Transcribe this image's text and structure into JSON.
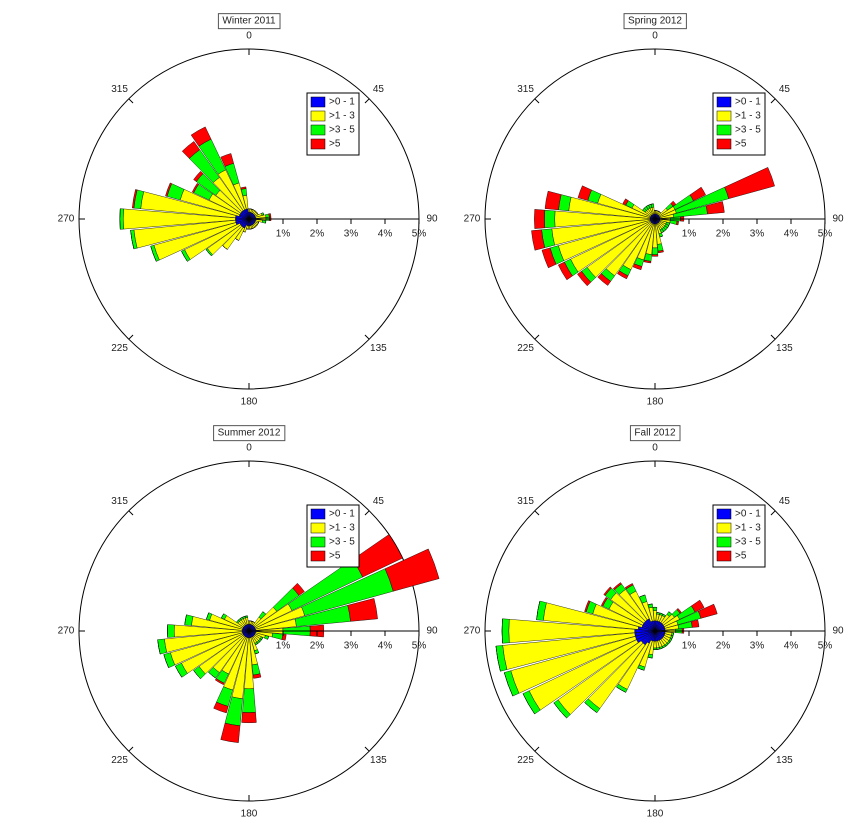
{
  "chart_data": [
    {
      "type": "rose",
      "title": "Winter 2011",
      "x": [
        0,
        10,
        20,
        30,
        40,
        50,
        60,
        70,
        80,
        90,
        100,
        110,
        120,
        130,
        140,
        150,
        160,
        170,
        180,
        190,
        200,
        210,
        220,
        230,
        240,
        250,
        260,
        270,
        280,
        290,
        300,
        310,
        320,
        330,
        340,
        350
      ],
      "xticks": [
        0,
        45,
        90,
        135,
        180,
        225,
        270,
        315
      ],
      "ylim": [
        0,
        5
      ],
      "yticks": [
        {
          "value": 1,
          "label": "1%"
        },
        {
          "value": 2,
          "label": "2%"
        },
        {
          "value": 3,
          "label": "3%"
        },
        {
          "value": 4,
          "label": "4%"
        },
        {
          "value": 5,
          "label": "5%"
        }
      ],
      "series": [
        {
          "name": ">0 - 1",
          "color": "#0000ff",
          "values": [
            0.2,
            0.2,
            0.2,
            0.2,
            0.2,
            0.2,
            0.2,
            0.2,
            0.2,
            0.2,
            0.2,
            0.2,
            0.2,
            0.2,
            0.2,
            0.2,
            0.2,
            0.2,
            0.2,
            0.2,
            0.2,
            0.3,
            0.3,
            0.3,
            0.3,
            0.4,
            0.4,
            0.4,
            0.4,
            0.3,
            0.3,
            0.3,
            0.3,
            0.3,
            0.3,
            0.3
          ]
        },
        {
          "name": ">1 - 3",
          "color": "#ffff00",
          "values": [
            0.1,
            0.1,
            0.1,
            0.1,
            0.1,
            0.1,
            0.1,
            0.2,
            0.3,
            0.3,
            0.2,
            0.1,
            0.1,
            0.1,
            0.1,
            0.1,
            0.1,
            0.1,
            0.1,
            0.1,
            0.2,
            0.4,
            0.8,
            1.2,
            1.8,
            2.5,
            3.0,
            3.3,
            2.8,
            1.8,
            1.0,
            0.9,
            1.2,
            1.3,
            0.8,
            0.4
          ]
        },
        {
          "name": ">3 - 5",
          "color": "#00ff00",
          "values": [
            0,
            0,
            0,
            0,
            0,
            0,
            0,
            0.05,
            0.1,
            0.1,
            0.1,
            0,
            0,
            0,
            0,
            0,
            0,
            0,
            0,
            0,
            0,
            0,
            0,
            0.05,
            0.1,
            0.1,
            0.1,
            0.1,
            0.2,
            0.4,
            0.5,
            0.7,
            1.0,
            1.0,
            0.6,
            0.2
          ]
        },
        {
          "name": ">5",
          "color": "#ff0000",
          "values": [
            0,
            0,
            0,
            0,
            0,
            0,
            0,
            0,
            0.05,
            0.05,
            0,
            0,
            0,
            0,
            0,
            0,
            0,
            0,
            0,
            0,
            0,
            0,
            0,
            0,
            0,
            0,
            0,
            0,
            0.05,
            0.05,
            0.05,
            0.1,
            0.3,
            0.4,
            0.3,
            0.05
          ]
        }
      ]
    },
    {
      "type": "rose",
      "title": "Spring 2012",
      "x": [
        0,
        10,
        20,
        30,
        40,
        50,
        60,
        70,
        80,
        90,
        100,
        110,
        120,
        130,
        140,
        150,
        160,
        170,
        180,
        190,
        200,
        210,
        220,
        230,
        240,
        250,
        260,
        270,
        280,
        290,
        300,
        310,
        320,
        330,
        340,
        350
      ],
      "xticks": [
        0,
        45,
        90,
        135,
        180,
        225,
        270,
        315
      ],
      "ylim": [
        0,
        5
      ],
      "yticks": [
        {
          "value": 1,
          "label": "1%"
        },
        {
          "value": 2,
          "label": "2%"
        },
        {
          "value": 3,
          "label": "3%"
        },
        {
          "value": 4,
          "label": "4%"
        },
        {
          "value": 5,
          "label": "5%"
        }
      ],
      "series": [
        {
          "name": ">0 - 1",
          "color": "#0000ff",
          "values": [
            0.15,
            0.15,
            0.15,
            0.15,
            0.15,
            0.15,
            0.15,
            0.15,
            0.15,
            0.15,
            0.15,
            0.15,
            0.15,
            0.15,
            0.15,
            0.15,
            0.15,
            0.15,
            0.15,
            0.15,
            0.15,
            0.15,
            0.15,
            0.15,
            0.15,
            0.15,
            0.15,
            0.15,
            0.15,
            0.15,
            0.15,
            0.15,
            0.15,
            0.15,
            0.15,
            0.15
          ]
        },
        {
          "name": ">1 - 3",
          "color": "#ffff00",
          "values": [
            0.1,
            0.1,
            0.1,
            0.1,
            0.1,
            0.3,
            0.5,
            0.5,
            0.4,
            0.3,
            0.3,
            0.2,
            0.2,
            0.2,
            0.2,
            0.2,
            0.3,
            0.6,
            0.7,
            0.9,
            1.1,
            1.5,
            1.9,
            2.3,
            2.6,
            2.8,
            2.9,
            2.8,
            2.4,
            1.6,
            0.6,
            0.2,
            0.2,
            0.2,
            0.2,
            0.2
          ]
        },
        {
          "name": ">3 - 5",
          "color": "#00ff00",
          "values": [
            0,
            0,
            0,
            0,
            0,
            0.2,
            0.6,
            1.6,
            1.0,
            0.3,
            0.2,
            0.1,
            0.1,
            0.1,
            0.1,
            0.1,
            0.1,
            0.2,
            0.2,
            0.2,
            0.2,
            0.2,
            0.2,
            0.2,
            0.2,
            0.25,
            0.3,
            0.3,
            0.3,
            0.3,
            0.2,
            0.1,
            0.1,
            0.1,
            0.1,
            0.1
          ]
        },
        {
          "name": ">5",
          "color": "#ff0000",
          "values": [
            0,
            0,
            0,
            0,
            0,
            0.1,
            0.4,
            1.4,
            0.5,
            0.1,
            0.05,
            0,
            0,
            0,
            0,
            0,
            0,
            0.05,
            0.05,
            0.05,
            0.1,
            0.1,
            0.15,
            0.15,
            0.2,
            0.25,
            0.3,
            0.3,
            0.4,
            0.3,
            0.1,
            0,
            0,
            0,
            0,
            0
          ]
        }
      ]
    },
    {
      "type": "rose",
      "title": "Summer 2012",
      "x": [
        0,
        10,
        20,
        30,
        40,
        50,
        60,
        70,
        80,
        90,
        100,
        110,
        120,
        130,
        140,
        150,
        160,
        170,
        180,
        190,
        200,
        210,
        220,
        230,
        240,
        250,
        260,
        270,
        280,
        290,
        300,
        310,
        320,
        330,
        340,
        350
      ],
      "xticks": [
        0,
        45,
        90,
        135,
        180,
        225,
        270,
        315
      ],
      "ylim": [
        0,
        5
      ],
      "yticks": [
        {
          "value": 1,
          "label": "1%"
        },
        {
          "value": 2,
          "label": "2%"
        },
        {
          "value": 3,
          "label": "3%"
        },
        {
          "value": 4,
          "label": "4%"
        },
        {
          "value": 5,
          "label": "5%"
        }
      ],
      "series": [
        {
          "name": ">0 - 1",
          "color": "#0000ff",
          "values": [
            0.2,
            0.2,
            0.2,
            0.2,
            0.2,
            0.2,
            0.2,
            0.2,
            0.2,
            0.2,
            0.2,
            0.2,
            0.2,
            0.2,
            0.2,
            0.2,
            0.2,
            0.2,
            0.2,
            0.2,
            0.2,
            0.2,
            0.2,
            0.2,
            0.2,
            0.2,
            0.2,
            0.2,
            0.2,
            0.2,
            0.2,
            0.2,
            0.2,
            0.2,
            0.2,
            0.2
          ]
        },
        {
          "name": ">1 - 3",
          "color": "#ffff00",
          "values": [
            0.1,
            0.1,
            0.1,
            0.1,
            0.3,
            0.8,
            1.2,
            1.5,
            1.2,
            0.8,
            0.5,
            0.3,
            0.2,
            0.2,
            0.2,
            0.2,
            0.4,
            0.8,
            1.5,
            1.8,
            1.6,
            1.2,
            1.3,
            1.6,
            2.0,
            2.2,
            2.3,
            2.0,
            1.5,
            1.0,
            0.6,
            0.2,
            0.2,
            0.2,
            0.2,
            0.2
          ]
        },
        {
          "name": ">3 - 5",
          "color": "#00ff00",
          "values": [
            0,
            0,
            0,
            0,
            0.2,
            0.8,
            2.3,
            2.7,
            1.6,
            0.8,
            0.3,
            0.1,
            0.05,
            0.05,
            0.05,
            0.05,
            0.1,
            0.3,
            0.7,
            0.8,
            0.5,
            0.3,
            0.2,
            0.2,
            0.2,
            0.2,
            0.2,
            0.2,
            0.2,
            0.1,
            0.1,
            0.05,
            0.05,
            0.05,
            0.05,
            0.05
          ]
        },
        {
          "name": ">5",
          "color": "#ff0000",
          "values": [
            0,
            0,
            0,
            0,
            0,
            0.2,
            1.3,
            1.4,
            0.8,
            0.4,
            0.1,
            0,
            0,
            0,
            0,
            0,
            0,
            0.1,
            0.3,
            0.5,
            0.2,
            0.05,
            0,
            0,
            0,
            0,
            0,
            0,
            0,
            0,
            0,
            0,
            0,
            0,
            0,
            0
          ]
        }
      ]
    },
    {
      "type": "rose",
      "title": "Fall 2012",
      "x": [
        0,
        10,
        20,
        30,
        40,
        50,
        60,
        70,
        80,
        90,
        100,
        110,
        120,
        130,
        140,
        150,
        160,
        170,
        180,
        190,
        200,
        210,
        220,
        230,
        240,
        250,
        260,
        270,
        280,
        290,
        300,
        310,
        320,
        330,
        340,
        350
      ],
      "xticks": [
        0,
        45,
        90,
        135,
        180,
        225,
        270,
        315
      ],
      "ylim": [
        0,
        5
      ],
      "yticks": [
        {
          "value": 1,
          "label": "1%"
        },
        {
          "value": 2,
          "label": "2%"
        },
        {
          "value": 3,
          "label": "3%"
        },
        {
          "value": 4,
          "label": "4%"
        },
        {
          "value": 5,
          "label": "5%"
        }
      ],
      "series": [
        {
          "name": ">0 - 1",
          "color": "#0000ff",
          "values": [
            0.3,
            0.3,
            0.3,
            0.3,
            0.3,
            0.3,
            0.3,
            0.3,
            0.3,
            0.3,
            0.3,
            0.3,
            0.3,
            0.3,
            0.3,
            0.3,
            0.3,
            0.3,
            0.3,
            0.3,
            0.3,
            0.4,
            0.5,
            0.5,
            0.6,
            0.6,
            0.6,
            0.6,
            0.5,
            0.4,
            0.4,
            0.4,
            0.4,
            0.4,
            0.3,
            0.3
          ]
        },
        {
          "name": ">1 - 3",
          "color": "#ffff00",
          "values": [
            0.3,
            0.2,
            0.2,
            0.2,
            0.3,
            0.4,
            0.5,
            0.4,
            0.4,
            0.3,
            0.2,
            0.2,
            0.2,
            0.2,
            0.2,
            0.2,
            0.2,
            0.2,
            0.2,
            0.4,
            0.8,
            1.5,
            2.3,
            3.0,
            3.5,
            3.8,
            3.9,
            3.7,
            2.8,
            1.5,
            1.1,
            1.2,
            1.1,
            0.9,
            0.6,
            0.4
          ]
        },
        {
          "name": ">3 - 5",
          "color": "#00ff00",
          "values": [
            0.1,
            0.05,
            0.05,
            0.05,
            0.1,
            0.2,
            0.5,
            0.7,
            0.4,
            0.2,
            0.05,
            0.05,
            0.05,
            0.05,
            0.05,
            0.05,
            0.05,
            0.05,
            0.05,
            0.1,
            0.1,
            0.1,
            0.15,
            0.15,
            0.2,
            0.2,
            0.2,
            0.2,
            0.2,
            0.2,
            0.2,
            0.2,
            0.2,
            0.2,
            0.2,
            0.1
          ]
        },
        {
          "name": ">5",
          "color": "#ff0000",
          "values": [
            0,
            0,
            0,
            0,
            0,
            0.05,
            0.3,
            0.5,
            0.2,
            0.05,
            0,
            0,
            0,
            0,
            0,
            0,
            0,
            0,
            0,
            0,
            0,
            0,
            0,
            0,
            0,
            0,
            0,
            0,
            0,
            0.05,
            0.05,
            0.05,
            0.05,
            0.05,
            0,
            0
          ]
        }
      ]
    }
  ]
}
